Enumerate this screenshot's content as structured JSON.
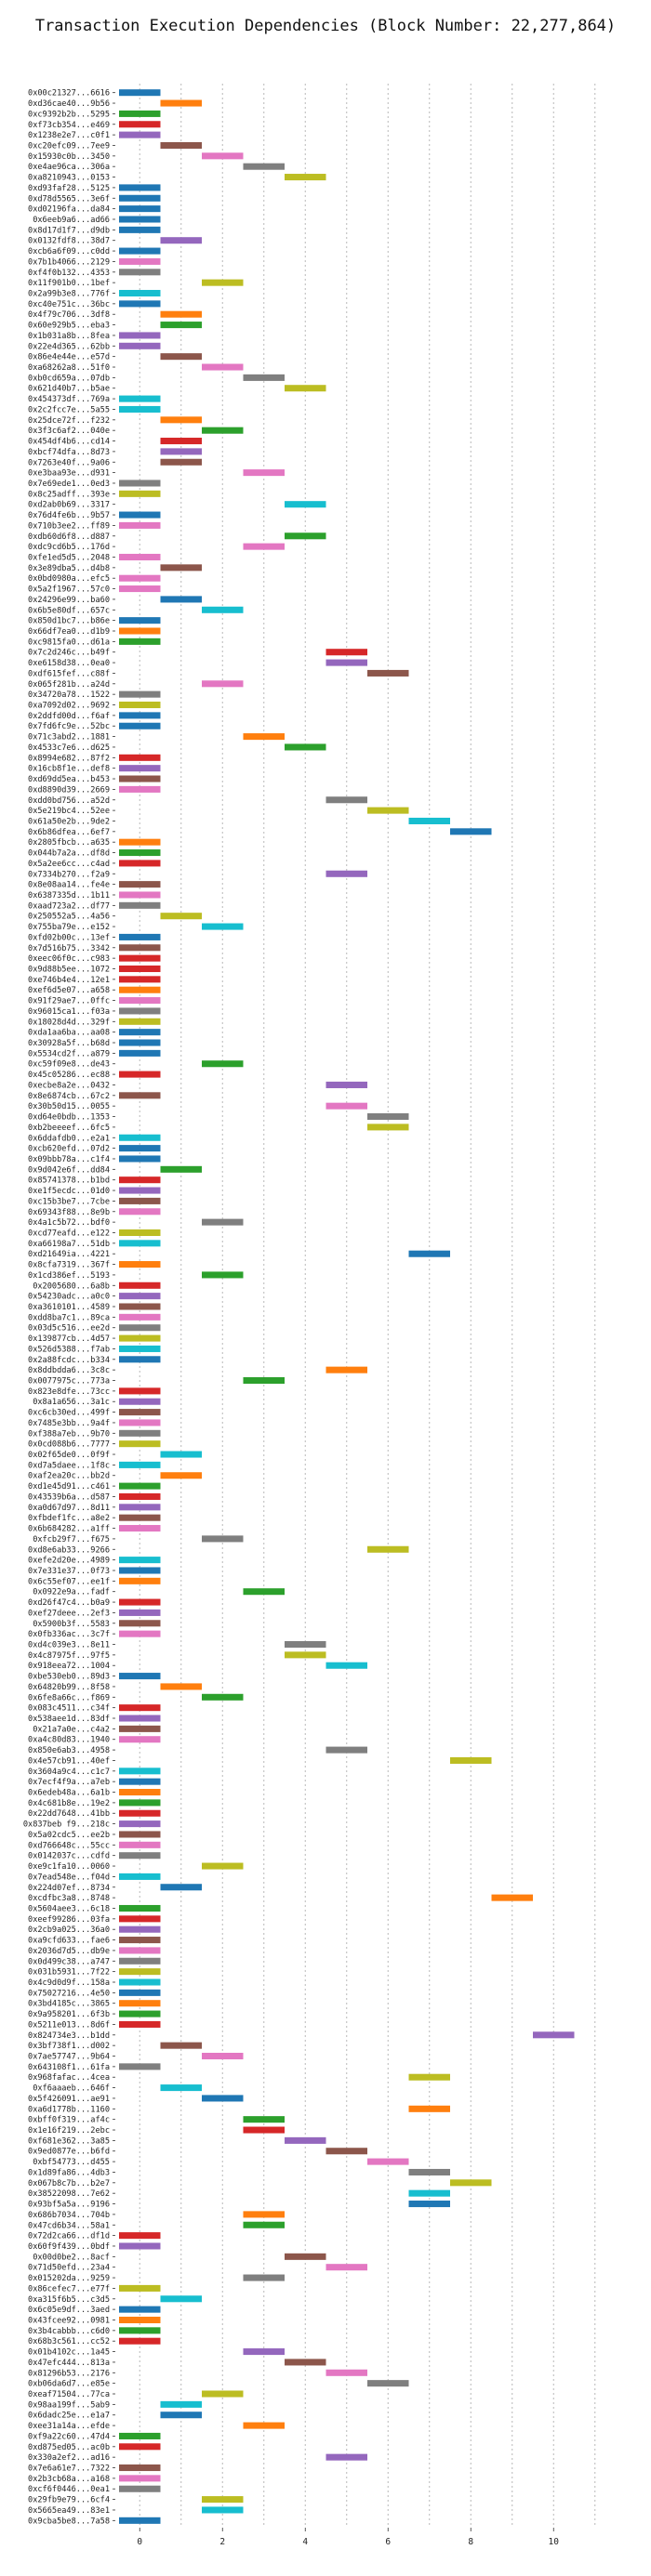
{
  "chart_data": {
    "type": "bar",
    "orientation": "horizontal",
    "title": "Transaction Execution Dependencies (Block Number: 22,277,864)",
    "xlabel": "",
    "ylabel": "",
    "xlim": [
      -0.5,
      11.5
    ],
    "xticks": [
      "0",
      "2",
      "4",
      "6",
      "8",
      "10"
    ],
    "grid": true,
    "bar_width": 1,
    "colors": [
      "#1f77b4",
      "#ff7f0e",
      "#2ca02c",
      "#d62728",
      "#9467bd",
      "#8c564b",
      "#e377c2",
      "#7f7f7f",
      "#bcbd22",
      "#17becf"
    ],
    "categories": [
      "0x00c21327...6616",
      "0xd36cae40...9b56",
      "0xc9392b2b...5295",
      "0xf73cb354...e469",
      "0x1238e2e7...c0f1",
      "0xc20efc09...7ee9",
      "0x15930c0b...3450",
      "0xe4ae96ca...306a",
      "0xa8210943...0153",
      "0xd93faf28...5125",
      "0xd78d5565...3e6f",
      "0xd02196fa...da84",
      "0x6eeb9a6...ad66",
      "0x8d17d1f7...d9db",
      "0x0132fdf8...38d7",
      "0xcb6a6f09...c0dd",
      "0x7b1b4066...2129",
      "0xf4f0b132...4353",
      "0x11f901b0...1bef",
      "0x2a99b3e8...776f",
      "0xc40e751c...36bc",
      "0x4f79c706...3df8",
      "0x60e929b5...eba3",
      "0x1b031a8b...8fea",
      "0x22e4d365...62bb",
      "0x86e4e44e...e57d",
      "0xa68262a8...51f0",
      "0xb0cd659a...07db",
      "0x621d40b7...b5ae",
      "0x454373df...769a",
      "0x2c2fcc7e...5a55",
      "0x25dce72f...f232",
      "0x3f3c6af2...040e",
      "0x454df4b6...cd14",
      "0xbcf74dfa...8d73",
      "0x7263e40f...9a06",
      "0xe3baa93e...d931",
      "0x7e69ede1...0ed3",
      "0x8c25adff...393e",
      "0xd2ab0b69...3317",
      "0x76d4fe6b...9b57",
      "0x710b3ee2...ff89",
      "0xdb60d6f8...d887",
      "0xdc9cd6b5...176d",
      "0xfe1ed5d5...2048",
      "0x3e89dba5...d4b8",
      "0x0bd0980a...efc5",
      "0x5a2f1967...57c0",
      "0x24296e99...ba60",
      "0x6b5e80df...657c",
      "0x850d1bc7...b86e",
      "0x66df7ea0...d1b9",
      "0xc9815fa0...d61a",
      "0x7c2d246c...b49f",
      "0xe6158d38...0ea0",
      "0xdf615fef...c88f",
      "0x065f281b...a24d",
      "0x34720a78...1522",
      "0xa7092d02...9692",
      "0x2ddfd00d...f6af",
      "0x7fd6fc9e...52bc",
      "0x71c3abd2...1881",
      "0x4533c7e6...d625",
      "0x8994e682...87f2",
      "0x16cb8f1e...def8",
      "0xd69dd5ea...b453",
      "0xd8890d39...2669",
      "0xdd0bd756...a52d",
      "0x5e219bc4...52ee",
      "0x61a50e2b...9de2",
      "0x6b86dfea...6ef7",
      "0x2805fbcb...a635",
      "0x044b7a2a...df8d",
      "0x5a2ee6cc...c4ad",
      "0x7334b270...f2a9",
      "0x8e08aa14...fe4e",
      "0x6387335d...1b11",
      "0xaad723a2...df77",
      "0x250552a5...4a56",
      "0x755ba79e...e152",
      "0xfd02b00c...13ef",
      "0x7d516b75...3342",
      "0xeec06f0c...c983",
      "0x9d88b5ee...1072",
      "0xe746b4e4...12e1",
      "0xef6d5e07...a658",
      "0x91f29ae7...0ffc",
      "0x96015ca1...f03a",
      "0x18028d4d...329f",
      "0xda1aa6ba...aa08",
      "0x30928a5f...b68d",
      "0x5534cd2f...a879",
      "0xc59f09e8...de43",
      "0x45c05286...ec88",
      "0xecbe8a2e...0432",
      "0x8e6874cb...67c2",
      "0x30b50d15...0055",
      "0xd64e0bdb...1353",
      "0xb2beeeef...6fc5",
      "0x6ddafdb0...e2a1",
      "0xcb620efd...07d2",
      "0x09bbb78a...c1f4",
      "0x9d042e6f...dd84",
      "0x85741378...b1bd",
      "0xe1f5ecdc...01d0",
      "0xc15b3be7...7cbe",
      "0x69343f88...8e9b",
      "0x4a1c5b72...bdf0",
      "0xcd77eafd...e122",
      "0xa66198a7...51db",
      "0xd21649ia...4221",
      "0x8cfa7319...367f",
      "0x1cd386ef...5193",
      "0x2005680...6a8b",
      "0x54230adc...a0c0",
      "0xa3610101...4589",
      "0xdd8ba7c1...89ca",
      "0x03d5c516...ee2d",
      "0x139877cb...4d57",
      "0x526d5388...f7ab",
      "0x2a88fcdc...b334",
      "0x8ddbdda6...3c8c",
      "0x0077975c...773a",
      "0x823e8dfe...73cc",
      "0x8a1a656...3a1c",
      "0xc6cb30ed...499f",
      "0x7485e3bb...9a4f",
      "0xf388a7eb...9b70",
      "0x0cd088b6...7777",
      "0x02f65de0...0f9f",
      "0xd7a5daee...1f8c",
      "0xaf2ea20c...bb2d",
      "0xd1e45d91...c461",
      "0x43539b6a...d587",
      "0xa0d67d97...8d11",
      "0xfbdef1fc...a8e2",
      "0x6b684282...a1ff",
      "0xfcb29f7...f675",
      "0xd8e6ab33...9266",
      "0xefe2d20e...4989",
      "0x7e331e37...0f73",
      "0x6c55ef07...ee1f",
      "0x0922e9a...fadf",
      "0xd26f47c4...b0a9",
      "0xef27deee...2ef3",
      "0x5900b3f...5583",
      "0x0fb336ac...3c7f",
      "0xd4c039e3...8e11",
      "0x4c87975f...97f5",
      "0x918eea72...1004",
      "0xbe530eb0...89d3",
      "0x64820b99...8f58",
      "0x6fe8a66c...f869",
      "0x083c4511...c34f",
      "0x538aee1d...83df",
      "0x21a7a0e...c4a2",
      "0xa4c80d83...1940",
      "0x850e6ab3...4958",
      "0x4e57cb91...40ef",
      "0x3604a9c4...c1c7",
      "0x7ecf4f9a...a7eb",
      "0x6edeb48a...6a1b",
      "0x4c681b8e...19e2",
      "0x22dd7648...41bb",
      "0x837beb f9...218c",
      "0x5a02cdc5...ee2b",
      "0xd766648c...55cc",
      "0x0142037c...cdfd",
      "0xe9c1fa10...0060",
      "0x7ead548e...f04d",
      "0x224d07ef...8734",
      "0xcdfbc3a8...8748",
      "0x5604aee3...6c18",
      "0xeef99286...03fa",
      "0x2cb9a025...36a0",
      "0xa9cfd633...fae6",
      "0x2036d7d5...db9e",
      "0x0d499c38...a747",
      "0x031b5931...7f22",
      "0x4c9d0d9f...158a",
      "0x75027216...4e50",
      "0x3bd4185c...3865",
      "0x9a958201...6f3b",
      "0x5211e013...8d6f",
      "0x824734e3...b1dd",
      "0x3bf738f1...d002",
      "0x7ae57747...9b64",
      "0x643108f1...61fa",
      "0x968fafac...4cea",
      "0xf6aaaeb...646f",
      "0x5f426091...ae91",
      "0xa6d1778b...1160",
      "0xbff0f319...af4c",
      "0x1e16f219...2ebc",
      "0xf681e362...3a85",
      "0x9ed0877e...b6fd",
      "0xbf54773...d455",
      "0x1d89fa86...4db3",
      "0x067b8c7b...b2e7",
      "0x38522098...7e62",
      "0x93bf5a5a...9196",
      "0x686b7034...704b",
      "0x47cd6b34...58a1",
      "0x72d2ca66...df1d",
      "0x60f9f439...0bdf",
      "0x00d0be2...8acf",
      "0x71d50efd...23a4",
      "0x015202da...9259",
      "0x86cefec7...e77f",
      "0xa315f6b5...c3d5",
      "0x6c05e9df...3aed",
      "0x43fcee92...0981",
      "0x3b4cabbb...c6d0",
      "0x68b3c561...cc52",
      "0x01b4102c...1a45",
      "0x47efc444...813a",
      "0x81296b53...2176",
      "0xb06da6d7...e85e",
      "0xeaf71504...77ca",
      "0x98aa199f...5ab9",
      "0x6dadc25e...e1a7",
      "0xee31a14a...efde",
      "0xf9a22c60...47d4",
      "0xd875ed05...ac0b",
      "0x330a2ef2...ad16",
      "0x7e6a61e7...7322",
      "0x2b3cb68a...a168",
      "0xcf6f0446...0ea1",
      "0x29fb9e79...6cf4",
      "0x5665ea49...83e1",
      "0x9cba5be8...7a58"
    ],
    "values": [
      0,
      1,
      0,
      0,
      0,
      1,
      2,
      3,
      4,
      0,
      0,
      0,
      0,
      0,
      1,
      0,
      0,
      0,
      2,
      0,
      0,
      1,
      1,
      0,
      0,
      1,
      2,
      3,
      4,
      0,
      0,
      1,
      2,
      1,
      1,
      1,
      3,
      0,
      0,
      4,
      0,
      0,
      4,
      3,
      0,
      1,
      0,
      0,
      1,
      2,
      0,
      0,
      0,
      5,
      5,
      6,
      2,
      0,
      0,
      0,
      0,
      3,
      4,
      0,
      0,
      0,
      0,
      5,
      6,
      7,
      8,
      0,
      0,
      0,
      5,
      0,
      0,
      0,
      1,
      2,
      0,
      0,
      0,
      0,
      0,
      0,
      0,
      0,
      0,
      0,
      0,
      0,
      2,
      0,
      5,
      0,
      5,
      6,
      6,
      0,
      0,
      0,
      1,
      0,
      0,
      0,
      0,
      2,
      0,
      0,
      7,
      0,
      2,
      0,
      0,
      0,
      0,
      0,
      0,
      0,
      0,
      5,
      3,
      0,
      0,
      0,
      0,
      0,
      0,
      1,
      0,
      1,
      0,
      0,
      0,
      0,
      0,
      2,
      6,
      0,
      0,
      0,
      3,
      0,
      0,
      0,
      0,
      4,
      4,
      5,
      0,
      1,
      2,
      0,
      0,
      0,
      0,
      5,
      8,
      0,
      0,
      0,
      0,
      0,
      0,
      0,
      0,
      0,
      2,
      0,
      1,
      9,
      0,
      0,
      0,
      0,
      0,
      0,
      0,
      0,
      0,
      0,
      0,
      0,
      10,
      1,
      2,
      0,
      7,
      1,
      2,
      7,
      3,
      3,
      4,
      5,
      6,
      7,
      8,
      7,
      7,
      3,
      3,
      0,
      0,
      4,
      5,
      3,
      0,
      1,
      0,
      0,
      0,
      0,
      3,
      4,
      5,
      6,
      2,
      1,
      1,
      3,
      0,
      0,
      5,
      0,
      0,
      0,
      2,
      2,
      0
    ],
    "colors_index": [
      0,
      1,
      2,
      3,
      4,
      5,
      6,
      7,
      8,
      0,
      0,
      0,
      0,
      0,
      4,
      0,
      6,
      7,
      8,
      9,
      0,
      1,
      2,
      4,
      4,
      5,
      6,
      7,
      8,
      9,
      9,
      1,
      2,
      3,
      4,
      5,
      6,
      7,
      8,
      9,
      0,
      6,
      2,
      6,
      6,
      5,
      6,
      6,
      0,
      9,
      0,
      1,
      2,
      3,
      4,
      5,
      6,
      7,
      8,
      0,
      0,
      1,
      2,
      3,
      4,
      5,
      6,
      7,
      8,
      9,
      0,
      1,
      2,
      3,
      4,
      5,
      6,
      7,
      8,
      9,
      0,
      5,
      3,
      3,
      3,
      1,
      6,
      7,
      8,
      0,
      0,
      0,
      2,
      3,
      4,
      5,
      6,
      7,
      8,
      9,
      0,
      0,
      2,
      3,
      4,
      5,
      6,
      7,
      8,
      9,
      0,
      1,
      2,
      3,
      4,
      5,
      6,
      7,
      8,
      9,
      0,
      1,
      2,
      3,
      4,
      5,
      6,
      7,
      8,
      9,
      9,
      1,
      2,
      3,
      4,
      5,
      6,
      7,
      8,
      9,
      0,
      1,
      2,
      3,
      4,
      5,
      6,
      7,
      8,
      9,
      0,
      1,
      2,
      3,
      4,
      5,
      6,
      7,
      8,
      9,
      0,
      1,
      2,
      3,
      4,
      5,
      6,
      7,
      8,
      9,
      0,
      1,
      2,
      3,
      4,
      5,
      6,
      7,
      8,
      9,
      0,
      1,
      2,
      3,
      4,
      5,
      6,
      7,
      8,
      9,
      0,
      1,
      2,
      3,
      4,
      5,
      6,
      7,
      8,
      9,
      0,
      1,
      2,
      3,
      4,
      5,
      6,
      7,
      8,
      9,
      0,
      1,
      2,
      3,
      4,
      5,
      6,
      7,
      8,
      9,
      0,
      1,
      2,
      3,
      4,
      5,
      6,
      7,
      8,
      9,
      0
    ]
  }
}
